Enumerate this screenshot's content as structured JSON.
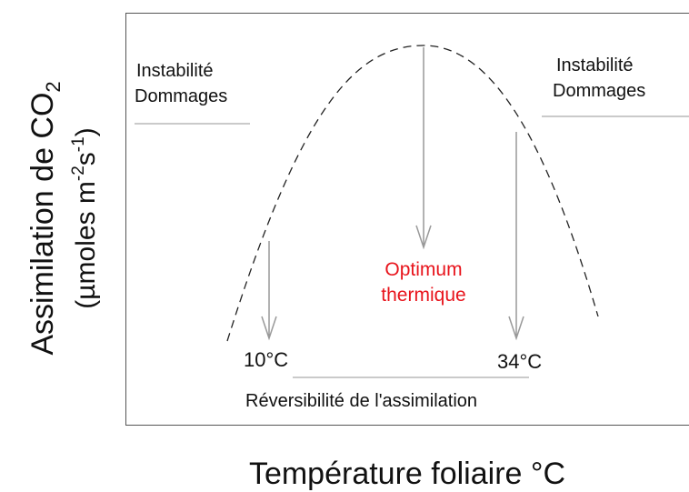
{
  "y_label": {
    "line1": "Assimilation de CO",
    "line1_sub": "2",
    "line2_start": "(µmoles m",
    "line2_sup1": "-2",
    "line2_mid": "s",
    "line2_sup2": "-1",
    "line2_end": ")"
  },
  "x_label": "Température foliaire °C",
  "left_zone": {
    "line1": "Instabilité",
    "line2": "Dommages"
  },
  "right_zone": {
    "line1": "Instabilité",
    "line2": "Dommages"
  },
  "optimum": {
    "line1": "Optimum",
    "line2": "thermique"
  },
  "low_temp": "10°C",
  "high_temp": "34°C",
  "reversibility": "Réversibilité de l'assimilation"
}
